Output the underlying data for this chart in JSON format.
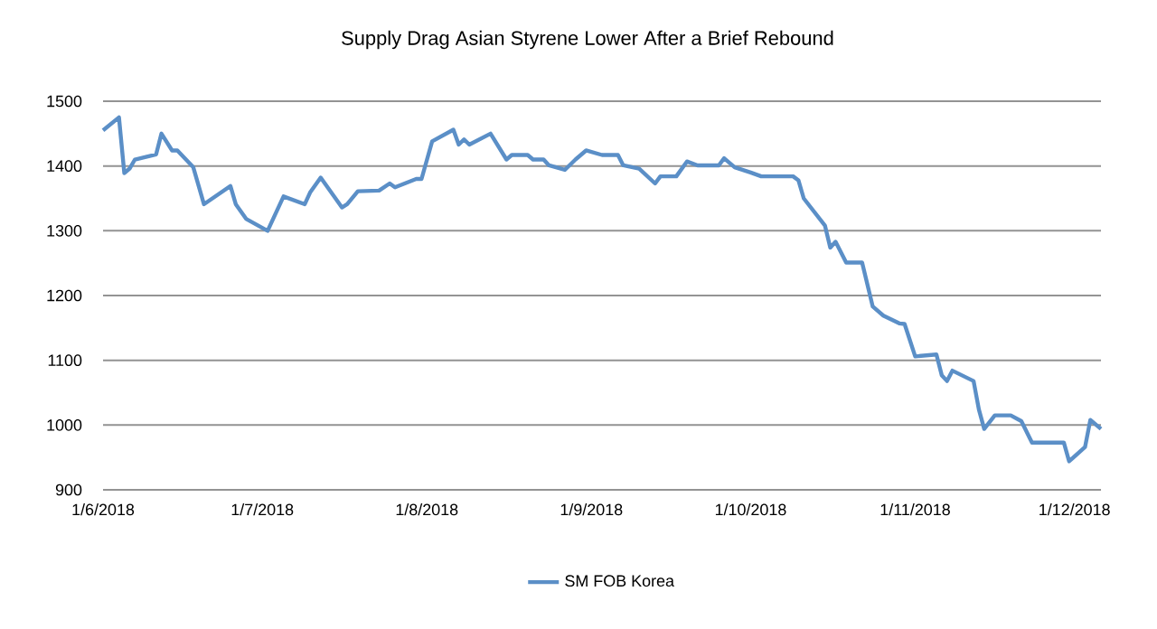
{
  "chart_data": {
    "type": "line",
    "title": "Supply Drag Asian Styrene Lower After a Brief Rebound",
    "x": [
      "2018-06-01",
      "2018-06-04",
      "2018-06-05",
      "2018-06-06",
      "2018-06-07",
      "2018-06-11",
      "2018-06-12",
      "2018-06-14",
      "2018-06-15",
      "2018-06-18",
      "2018-06-20",
      "2018-06-25",
      "2018-06-26",
      "2018-06-28",
      "2018-07-02",
      "2018-07-05",
      "2018-07-09",
      "2018-07-10",
      "2018-07-12",
      "2018-07-16",
      "2018-07-17",
      "2018-07-19",
      "2018-07-23",
      "2018-07-25",
      "2018-07-26",
      "2018-07-30",
      "2018-07-31",
      "2018-08-02",
      "2018-08-06",
      "2018-08-07",
      "2018-08-08",
      "2018-08-09",
      "2018-08-13",
      "2018-08-16",
      "2018-08-17",
      "2018-08-20",
      "2018-08-21",
      "2018-08-23",
      "2018-08-24",
      "2018-08-27",
      "2018-08-29",
      "2018-08-31",
      "2018-09-03",
      "2018-09-06",
      "2018-09-07",
      "2018-09-10",
      "2018-09-13",
      "2018-09-14",
      "2018-09-17",
      "2018-09-19",
      "2018-09-21",
      "2018-09-25",
      "2018-09-26",
      "2018-09-28",
      "2018-10-01",
      "2018-10-03",
      "2018-10-09",
      "2018-10-10",
      "2018-10-11",
      "2018-10-15",
      "2018-10-16",
      "2018-10-17",
      "2018-10-19",
      "2018-10-22",
      "2018-10-24",
      "2018-10-26",
      "2018-10-29",
      "2018-10-30",
      "2018-11-01",
      "2018-11-05",
      "2018-11-06",
      "2018-11-07",
      "2018-11-08",
      "2018-11-12",
      "2018-11-13",
      "2018-11-14",
      "2018-11-16",
      "2018-11-19",
      "2018-11-21",
      "2018-11-23",
      "2018-11-29",
      "2018-11-30",
      "2018-12-03",
      "2018-12-04",
      "2018-12-06"
    ],
    "series": [
      {
        "name": "SM FOB Korea",
        "color": "#5b8fc7",
        "values": [
          1455,
          1475,
          1389,
          1396,
          1410,
          1418,
          1450,
          1424,
          1424,
          1398,
          1341,
          1369,
          1341,
          1318,
          1300,
          1353,
          1341,
          1359,
          1382,
          1336,
          1341,
          1361,
          1362,
          1373,
          1367,
          1380,
          1380,
          1438,
          1456,
          1433,
          1441,
          1433,
          1450,
          1410,
          1417,
          1417,
          1410,
          1410,
          1401,
          1394,
          1410,
          1424,
          1417,
          1417,
          1401,
          1396,
          1373,
          1384,
          1384,
          1407,
          1401,
          1401,
          1412,
          1398,
          1390,
          1384,
          1384,
          1378,
          1350,
          1308,
          1274,
          1283,
          1251,
          1251,
          1183,
          1169,
          1157,
          1156,
          1106,
          1109,
          1077,
          1068,
          1084,
          1068,
          1024,
          994,
          1015,
          1015,
          1006,
          973,
          973,
          944,
          966,
          1008,
          994
        ]
      }
    ],
    "xlim": [
      "2018-06-01",
      "2018-12-06"
    ],
    "xticks": [
      {
        "value": "2018-06-01",
        "label": "1/6/2018"
      },
      {
        "value": "2018-07-01",
        "label": "1/7/2018"
      },
      {
        "value": "2018-08-01",
        "label": "1/8/2018"
      },
      {
        "value": "2018-09-01",
        "label": "1/9/2018"
      },
      {
        "value": "2018-10-01",
        "label": "1/10/2018"
      },
      {
        "value": "2018-11-01",
        "label": "1/11/2018"
      },
      {
        "value": "2018-12-01",
        "label": "1/12/2018"
      }
    ],
    "ylim": [
      900,
      1500
    ],
    "yticks": [
      900,
      1000,
      1100,
      1200,
      1300,
      1400,
      1500
    ],
    "grid": "y",
    "legend": "bottom",
    "marker": "none",
    "line_style": "solid"
  }
}
